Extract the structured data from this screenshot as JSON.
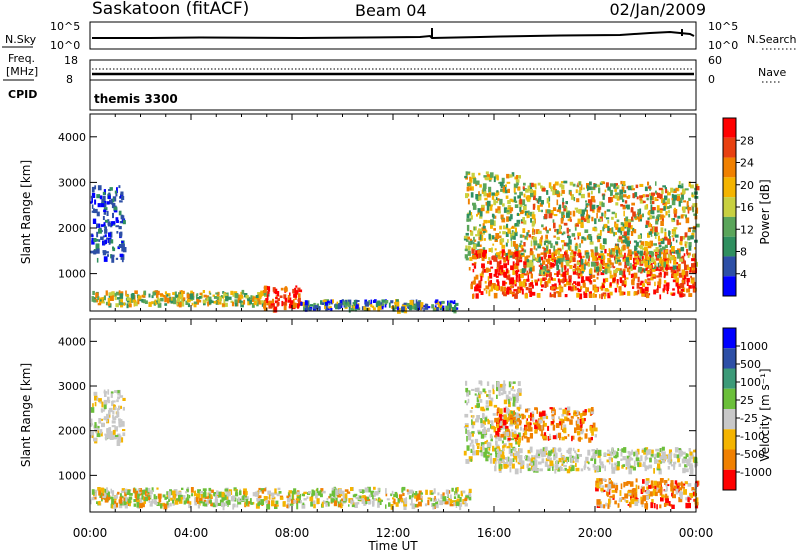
{
  "header": {
    "title": "Saskatoon (fitACF)",
    "beam": "Beam 04",
    "date": "02/Jan/2009"
  },
  "status_panels": {
    "nsky": {
      "label": "N.Sky",
      "left_ticks": [
        "10^5",
        "10^0"
      ],
      "right_label": "N.Search",
      "right_ticks": [
        "10^5",
        "10^0"
      ]
    },
    "freq": {
      "label_lines": [
        "Freq.",
        "[MHz]"
      ],
      "left_ticks": [
        "18",
        "8"
      ],
      "right_label": "Nave",
      "right_ticks": [
        "60",
        "0"
      ]
    },
    "cpid": {
      "label": "CPID",
      "value": "themis 3300"
    }
  },
  "colors": {
    "power": [
      "#0000ff",
      "#2d4fa6",
      "#2f8f5f",
      "#5aa55a",
      "#c8d040",
      "#f4b400",
      "#f08000",
      "#e84010",
      "#ff0000"
    ],
    "velocity": [
      "#0000ff",
      "#2d4fa6",
      "#3c9a78",
      "#6bbf3a",
      "#c8c8c8",
      "#f4b400",
      "#f08000",
      "#ff0000"
    ]
  },
  "chart_data": [
    {
      "type": "heatmap",
      "panel": "power",
      "ylabel": "Slant Range [km]",
      "ylim": [
        180,
        4500
      ],
      "yticks": [
        1000,
        2000,
        3000,
        4000
      ],
      "xlim_hours": [
        0,
        24
      ],
      "colorbar": {
        "label": "Power [dB]",
        "range": [
          0,
          32
        ],
        "ticks": [
          "4",
          "8",
          "12",
          "16",
          "20",
          "24",
          "28"
        ]
      },
      "regions": [
        {
          "t": [
            0.0,
            7.0
          ],
          "r": [
            300,
            600
          ],
          "level": "green-yellow"
        },
        {
          "t": [
            0.0,
            1.3
          ],
          "r": [
            1300,
            2900
          ],
          "level": "blue"
        },
        {
          "t": [
            6.8,
            8.3
          ],
          "r": [
            200,
            700
          ],
          "level": "red"
        },
        {
          "t": [
            8.3,
            14.5
          ],
          "r": [
            200,
            400
          ],
          "level": "blue-green"
        },
        {
          "t": [
            14.8,
            17.0
          ],
          "r": [
            1300,
            3200
          ],
          "level": "green-yellow"
        },
        {
          "t": [
            15.0,
            24.0
          ],
          "r": [
            500,
            1500
          ],
          "level": "orange-red"
        },
        {
          "t": [
            17.0,
            24.0
          ],
          "r": [
            1000,
            3000
          ],
          "level": "green-orange"
        }
      ]
    },
    {
      "type": "heatmap",
      "panel": "velocity",
      "ylabel": "Slant Range [km]",
      "ylim": [
        180,
        4500
      ],
      "yticks": [
        1000,
        2000,
        3000,
        4000
      ],
      "xlim_hours": [
        0,
        24
      ],
      "xticks": [
        "00:00",
        "04:00",
        "08:00",
        "12:00",
        "16:00",
        "20:00",
        "00:00"
      ],
      "xlabel": "Time UT",
      "colorbar": {
        "label": "Velocity [m s⁻¹]",
        "ticks": [
          "1000",
          "500",
          "100",
          "25",
          "-25",
          "-100",
          "-500",
          "-1000"
        ]
      },
      "regions": [
        {
          "t": [
            0.0,
            1.3
          ],
          "r": [
            1700,
            2900
          ],
          "level": "grey"
        },
        {
          "t": [
            0.0,
            15.0
          ],
          "r": [
            300,
            700
          ],
          "level": "grey-green"
        },
        {
          "t": [
            14.8,
            17.0
          ],
          "r": [
            1300,
            3100
          ],
          "level": "grey"
        },
        {
          "t": [
            16.0,
            24.0
          ],
          "r": [
            1100,
            1600
          ],
          "level": "grey"
        },
        {
          "t": [
            16.0,
            20.0
          ],
          "r": [
            1800,
            2500
          ],
          "level": "orange"
        },
        {
          "t": [
            20.0,
            24.0
          ],
          "r": [
            300,
            900
          ],
          "level": "orange"
        }
      ]
    }
  ]
}
